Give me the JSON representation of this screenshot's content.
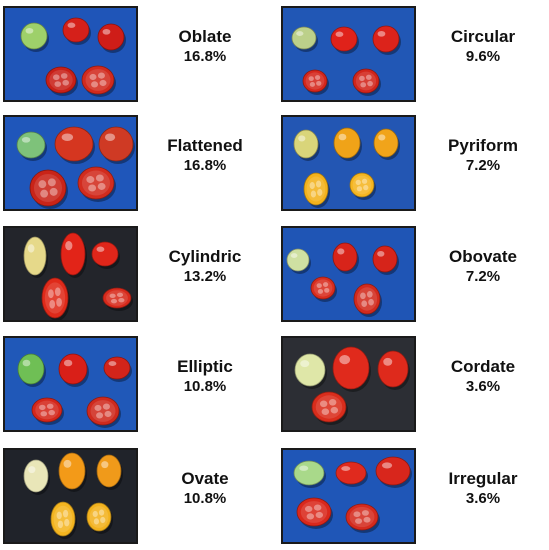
{
  "panels": [
    {
      "name": "Oblate",
      "percent": "16.8%",
      "bg": "#1f55b8",
      "fruits": [
        {
          "x": 29,
          "y": 28,
          "rx": 13,
          "ry": 13,
          "c": "#9ed06a"
        },
        {
          "x": 71,
          "y": 22,
          "rx": 13,
          "ry": 12,
          "c": "#d5201a"
        },
        {
          "x": 106,
          "y": 29,
          "rx": 13,
          "ry": 13,
          "c": "#cf1d18"
        },
        {
          "x": 56,
          "y": 72,
          "rx": 15,
          "ry": 13,
          "c": "#c82018",
          "cut": true
        },
        {
          "x": 93,
          "y": 72,
          "rx": 16,
          "ry": 14,
          "c": "#d12a1e",
          "cut": true
        }
      ]
    },
    {
      "name": "Circular",
      "percent": "9.6%",
      "bg": "#2157b5",
      "fruits": [
        {
          "x": 21,
          "y": 30,
          "rx": 12,
          "ry": 11,
          "c": "#bcd08a"
        },
        {
          "x": 61,
          "y": 31,
          "rx": 13,
          "ry": 12,
          "c": "#e0221a"
        },
        {
          "x": 103,
          "y": 31,
          "rx": 13,
          "ry": 13,
          "c": "#dc231b"
        },
        {
          "x": 32,
          "y": 73,
          "rx": 12,
          "ry": 11,
          "c": "#d4261c",
          "cut": true
        },
        {
          "x": 83,
          "y": 73,
          "rx": 13,
          "ry": 12,
          "c": "#d1251b",
          "cut": true
        }
      ]
    },
    {
      "name": "Flattened",
      "percent": "16.8%",
      "bg": "#1f56ba",
      "fruits": [
        {
          "x": 26,
          "y": 28,
          "rx": 14,
          "ry": 13,
          "c": "#7ec27a"
        },
        {
          "x": 69,
          "y": 27,
          "rx": 19,
          "ry": 17,
          "c": "#d53620"
        },
        {
          "x": 111,
          "y": 27,
          "rx": 17,
          "ry": 17,
          "c": "#cf3a24"
        },
        {
          "x": 43,
          "y": 71,
          "rx": 18,
          "ry": 18,
          "c": "#c92418",
          "cut": true
        },
        {
          "x": 91,
          "y": 66,
          "rx": 18,
          "ry": 16,
          "c": "#d22c1e",
          "cut": true
        }
      ]
    },
    {
      "name": "Pyriform",
      "percent": "7.2%",
      "bg": "#2356b3",
      "fruits": [
        {
          "x": 23,
          "y": 27,
          "rx": 12,
          "ry": 14,
          "c": "#d9d57a"
        },
        {
          "x": 64,
          "y": 26,
          "rx": 13,
          "ry": 15,
          "c": "#f0a318"
        },
        {
          "x": 103,
          "y": 26,
          "rx": 12,
          "ry": 14,
          "c": "#f1a41a"
        },
        {
          "x": 33,
          "y": 72,
          "rx": 12,
          "ry": 16,
          "c": "#f3b21c",
          "cut": true
        },
        {
          "x": 79,
          "y": 68,
          "rx": 12,
          "ry": 12,
          "c": "#f5b520",
          "cut": true
        }
      ]
    },
    {
      "name": "Cylindric",
      "percent": "13.2%",
      "bg": "#23252b",
      "fruits": [
        {
          "x": 30,
          "y": 28,
          "rx": 11,
          "ry": 19,
          "c": "#e6d98a"
        },
        {
          "x": 68,
          "y": 26,
          "rx": 12,
          "ry": 21,
          "c": "#e22418"
        },
        {
          "x": 100,
          "y": 26,
          "rx": 13,
          "ry": 12,
          "c": "#e0261a"
        },
        {
          "x": 50,
          "y": 70,
          "rx": 13,
          "ry": 20,
          "c": "#df2a1a",
          "cut": true
        },
        {
          "x": 112,
          "y": 70,
          "rx": 14,
          "ry": 10,
          "c": "#d72a1c",
          "cut": true
        }
      ]
    },
    {
      "name": "Obovate",
      "percent": "7.2%",
      "bg": "#1f55b5",
      "fruits": [
        {
          "x": 15,
          "y": 32,
          "rx": 11,
          "ry": 11,
          "c": "#cfe0a2"
        },
        {
          "x": 62,
          "y": 29,
          "rx": 12,
          "ry": 14,
          "c": "#d8241a"
        },
        {
          "x": 102,
          "y": 31,
          "rx": 12,
          "ry": 13,
          "c": "#d6241a"
        },
        {
          "x": 40,
          "y": 60,
          "rx": 12,
          "ry": 11,
          "c": "#d82c1e",
          "cut": true
        },
        {
          "x": 84,
          "y": 71,
          "rx": 13,
          "ry": 15,
          "c": "#d22a1d",
          "cut": true
        }
      ]
    },
    {
      "name": "Elliptic",
      "percent": "10.8%",
      "bg": "#2058b8",
      "fruits": [
        {
          "x": 26,
          "y": 31,
          "rx": 13,
          "ry": 15,
          "c": "#6fbf55"
        },
        {
          "x": 68,
          "y": 31,
          "rx": 14,
          "ry": 15,
          "c": "#d91f18"
        },
        {
          "x": 112,
          "y": 30,
          "rx": 13,
          "ry": 11,
          "c": "#d2241a"
        },
        {
          "x": 42,
          "y": 72,
          "rx": 15,
          "ry": 12,
          "c": "#d4271b",
          "cut": true
        },
        {
          "x": 98,
          "y": 73,
          "rx": 16,
          "ry": 14,
          "c": "#cf2a1e",
          "cut": true
        }
      ]
    },
    {
      "name": "Cordate",
      "percent": "3.6%",
      "bg": "#2c2e34",
      "fruits": [
        {
          "x": 27,
          "y": 32,
          "rx": 15,
          "ry": 16,
          "c": "#dfe7a8"
        },
        {
          "x": 68,
          "y": 30,
          "rx": 18,
          "ry": 21,
          "c": "#e02a1c"
        },
        {
          "x": 110,
          "y": 31,
          "rx": 15,
          "ry": 18,
          "c": "#de2a1c"
        },
        {
          "x": 46,
          "y": 69,
          "rx": 17,
          "ry": 15,
          "c": "#d92d1c",
          "cut": true
        }
      ]
    },
    {
      "name": "Ovate",
      "percent": "10.8%",
      "bg": "#20232a",
      "fruits": [
        {
          "x": 31,
          "y": 26,
          "rx": 12,
          "ry": 16,
          "c": "#e9e6b8"
        },
        {
          "x": 67,
          "y": 21,
          "rx": 13,
          "ry": 18,
          "c": "#f39a18"
        },
        {
          "x": 104,
          "y": 21,
          "rx": 12,
          "ry": 16,
          "c": "#f09a1a"
        },
        {
          "x": 58,
          "y": 69,
          "rx": 12,
          "ry": 17,
          "c": "#f4b520",
          "cut": true
        },
        {
          "x": 94,
          "y": 67,
          "rx": 12,
          "ry": 14,
          "c": "#f2b21e",
          "cut": true
        }
      ]
    },
    {
      "name": "Irregular",
      "percent": "3.6%",
      "bg": "#1f56b7",
      "fruits": [
        {
          "x": 26,
          "y": 23,
          "rx": 15,
          "ry": 12,
          "c": "#a9d98a"
        },
        {
          "x": 68,
          "y": 23,
          "rx": 15,
          "ry": 11,
          "c": "#e02a1e"
        },
        {
          "x": 110,
          "y": 21,
          "rx": 17,
          "ry": 14,
          "c": "#d8261c"
        },
        {
          "x": 31,
          "y": 62,
          "rx": 17,
          "ry": 14,
          "c": "#d9281c",
          "cut": true
        },
        {
          "x": 79,
          "y": 67,
          "rx": 16,
          "ry": 13,
          "c": "#d42a1e",
          "cut": true
        }
      ]
    }
  ]
}
